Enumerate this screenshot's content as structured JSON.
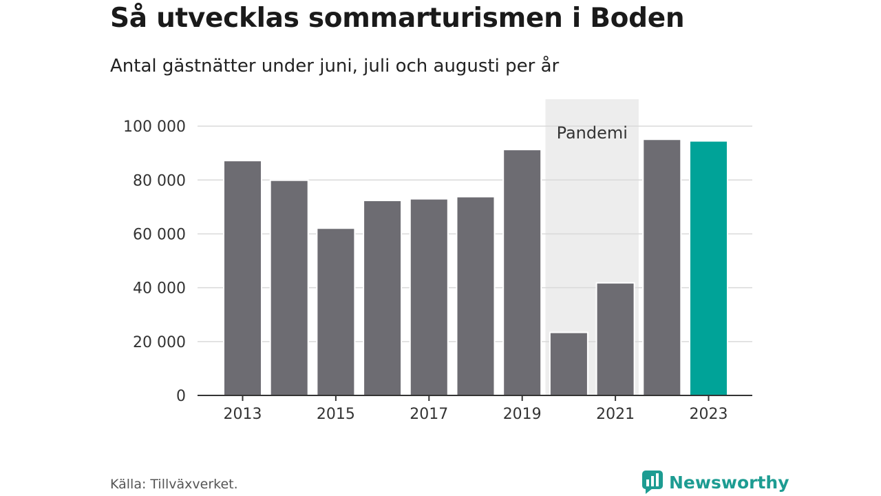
{
  "header": {
    "title": "Så utvecklas sommarturismen i Boden",
    "subtitle": "Antal gästnätter under juni, juli och augusti per år"
  },
  "footer": {
    "source": "Källa: Tillväxverket.",
    "brand": "Newsworthy"
  },
  "colors": {
    "bar": "#6d6c72",
    "highlight": "#00a398",
    "pandemic_band": "#ededed",
    "grid": "#d9d9d9",
    "axis": "#333333",
    "brand": "#1d9c92"
  },
  "chart_data": {
    "type": "bar",
    "title": "Så utvecklas sommarturismen i Boden",
    "subtitle": "Antal gästnätter under juni, juli och augusti per år",
    "categories": [
      "2013",
      "2014",
      "2015",
      "2016",
      "2017",
      "2018",
      "2019",
      "2020",
      "2021",
      "2022",
      "2023"
    ],
    "values": [
      87200,
      79900,
      62100,
      72400,
      73000,
      73800,
      91300,
      23400,
      41800,
      95100,
      94500
    ],
    "highlight_category": "2023",
    "x_tick_labels": [
      "2013",
      "2015",
      "2017",
      "2019",
      "2021",
      "2023"
    ],
    "y_ticks": [
      0,
      20000,
      40000,
      60000,
      80000,
      100000
    ],
    "y_tick_labels": [
      "0",
      "20 000",
      "40 000",
      "60 000",
      "80 000",
      "100 000"
    ],
    "ylim": [
      0,
      110000
    ],
    "grid": true,
    "annotations": [
      {
        "label": "Pandemi",
        "from": "2020",
        "to": "2021"
      }
    ]
  }
}
